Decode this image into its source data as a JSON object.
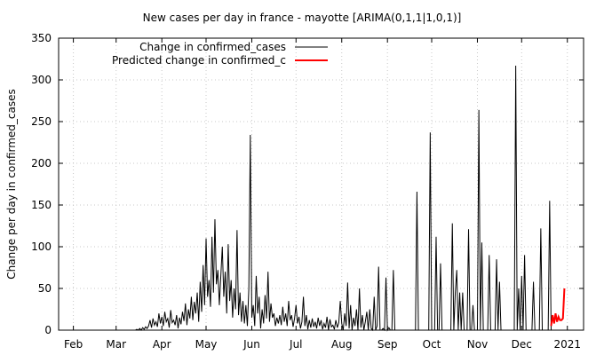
{
  "chart_data": {
    "type": "line",
    "title": "New cases per day in france - mayotte [ARIMA(0,1,1|1,0,1)]",
    "xlabel": "",
    "ylabel": "Change per day in confirmed_cases",
    "ylim": [
      0,
      350
    ],
    "yticks": [
      0,
      50,
      100,
      150,
      200,
      250,
      300,
      350
    ],
    "xlim": [
      "2020-01-22",
      "2021-01-12"
    ],
    "xticks": [
      {
        "date": "2020-02-01",
        "label": "Feb"
      },
      {
        "date": "2020-03-01",
        "label": "Mar"
      },
      {
        "date": "2020-04-01",
        "label": "Apr"
      },
      {
        "date": "2020-05-01",
        "label": "May"
      },
      {
        "date": "2020-06-01",
        "label": "Jun"
      },
      {
        "date": "2020-07-01",
        "label": "Jul"
      },
      {
        "date": "2020-08-01",
        "label": "Aug"
      },
      {
        "date": "2020-09-01",
        "label": "Sep"
      },
      {
        "date": "2020-10-01",
        "label": "Oct"
      },
      {
        "date": "2020-11-01",
        "label": "Nov"
      },
      {
        "date": "2020-12-01",
        "label": "Dec"
      },
      {
        "date": "2021-01-01",
        "label": "2021"
      }
    ],
    "grid": true,
    "legend_position": "top-left",
    "series": [
      {
        "name": "Change in confirmed_cases",
        "color": "#000000",
        "points": [
          [
            "2020-01-22",
            0
          ],
          [
            "2020-03-14",
            0
          ],
          [
            "2020-03-15",
            1
          ],
          [
            "2020-03-16",
            0
          ],
          [
            "2020-03-17",
            2
          ],
          [
            "2020-03-18",
            0
          ],
          [
            "2020-03-19",
            3
          ],
          [
            "2020-03-20",
            1
          ],
          [
            "2020-03-21",
            4
          ],
          [
            "2020-03-22",
            2
          ],
          [
            "2020-03-23",
            5
          ],
          [
            "2020-03-24",
            12
          ],
          [
            "2020-03-25",
            3
          ],
          [
            "2020-03-26",
            14
          ],
          [
            "2020-03-27",
            6
          ],
          [
            "2020-03-28",
            10
          ],
          [
            "2020-03-29",
            4
          ],
          [
            "2020-03-30",
            20
          ],
          [
            "2020-03-31",
            8
          ],
          [
            "2020-04-01",
            16
          ],
          [
            "2020-04-02",
            5
          ],
          [
            "2020-04-03",
            22
          ],
          [
            "2020-04-04",
            10
          ],
          [
            "2020-04-05",
            14
          ],
          [
            "2020-04-06",
            3
          ],
          [
            "2020-04-07",
            24
          ],
          [
            "2020-04-08",
            9
          ],
          [
            "2020-04-09",
            12
          ],
          [
            "2020-04-10",
            6
          ],
          [
            "2020-04-11",
            18
          ],
          [
            "2020-04-12",
            2
          ],
          [
            "2020-04-13",
            15
          ],
          [
            "2020-04-14",
            7
          ],
          [
            "2020-04-15",
            22
          ],
          [
            "2020-04-16",
            11
          ],
          [
            "2020-04-17",
            32
          ],
          [
            "2020-04-18",
            6
          ],
          [
            "2020-04-19",
            25
          ],
          [
            "2020-04-20",
            14
          ],
          [
            "2020-04-21",
            40
          ],
          [
            "2020-04-22",
            12
          ],
          [
            "2020-04-23",
            34
          ],
          [
            "2020-04-24",
            20
          ],
          [
            "2020-04-25",
            45
          ],
          [
            "2020-04-26",
            10
          ],
          [
            "2020-04-27",
            58
          ],
          [
            "2020-04-28",
            22
          ],
          [
            "2020-04-29",
            78
          ],
          [
            "2020-04-30",
            30
          ],
          [
            "2020-05-01",
            110
          ],
          [
            "2020-05-02",
            40
          ],
          [
            "2020-05-03",
            60
          ],
          [
            "2020-05-04",
            28
          ],
          [
            "2020-05-05",
            112
          ],
          [
            "2020-05-06",
            45
          ],
          [
            "2020-05-07",
            133
          ],
          [
            "2020-05-08",
            55
          ],
          [
            "2020-05-09",
            72
          ],
          [
            "2020-05-10",
            30
          ],
          [
            "2020-05-11",
            65
          ],
          [
            "2020-05-12",
            100
          ],
          [
            "2020-05-13",
            40
          ],
          [
            "2020-05-14",
            70
          ],
          [
            "2020-05-15",
            20
          ],
          [
            "2020-05-16",
            103
          ],
          [
            "2020-05-17",
            35
          ],
          [
            "2020-05-18",
            60
          ],
          [
            "2020-05-19",
            15
          ],
          [
            "2020-05-20",
            50
          ],
          [
            "2020-05-21",
            25
          ],
          [
            "2020-05-22",
            120
          ],
          [
            "2020-05-23",
            18
          ],
          [
            "2020-05-24",
            45
          ],
          [
            "2020-05-25",
            10
          ],
          [
            "2020-05-26",
            35
          ],
          [
            "2020-05-27",
            8
          ],
          [
            "2020-05-28",
            30
          ],
          [
            "2020-05-29",
            5
          ],
          [
            "2020-05-30",
            50
          ],
          [
            "2020-05-31",
            234
          ],
          [
            "2020-06-01",
            15
          ],
          [
            "2020-06-02",
            30
          ],
          [
            "2020-06-03",
            5
          ],
          [
            "2020-06-04",
            65
          ],
          [
            "2020-06-05",
            20
          ],
          [
            "2020-06-06",
            40
          ],
          [
            "2020-06-07",
            2
          ],
          [
            "2020-06-08",
            25
          ],
          [
            "2020-06-09",
            8
          ],
          [
            "2020-06-10",
            42
          ],
          [
            "2020-06-11",
            14
          ],
          [
            "2020-06-12",
            70
          ],
          [
            "2020-06-13",
            10
          ],
          [
            "2020-06-14",
            32
          ],
          [
            "2020-06-15",
            15
          ],
          [
            "2020-06-16",
            20
          ],
          [
            "2020-06-17",
            5
          ],
          [
            "2020-06-18",
            15
          ],
          [
            "2020-06-19",
            8
          ],
          [
            "2020-06-20",
            18
          ],
          [
            "2020-06-21",
            6
          ],
          [
            "2020-06-22",
            28
          ],
          [
            "2020-06-23",
            10
          ],
          [
            "2020-06-24",
            20
          ],
          [
            "2020-06-25",
            5
          ],
          [
            "2020-06-26",
            35
          ],
          [
            "2020-06-27",
            12
          ],
          [
            "2020-06-28",
            18
          ],
          [
            "2020-06-29",
            4
          ],
          [
            "2020-06-30",
            14
          ],
          [
            "2020-07-01",
            30
          ],
          [
            "2020-07-02",
            8
          ],
          [
            "2020-07-03",
            16
          ],
          [
            "2020-07-04",
            2
          ],
          [
            "2020-07-05",
            10
          ],
          [
            "2020-07-06",
            40
          ],
          [
            "2020-07-07",
            5
          ],
          [
            "2020-07-08",
            18
          ],
          [
            "2020-07-09",
            1
          ],
          [
            "2020-07-10",
            12
          ],
          [
            "2020-07-11",
            3
          ],
          [
            "2020-07-12",
            14
          ],
          [
            "2020-07-13",
            4
          ],
          [
            "2020-07-14",
            10
          ],
          [
            "2020-07-15",
            2
          ],
          [
            "2020-07-16",
            15
          ],
          [
            "2020-07-17",
            5
          ],
          [
            "2020-07-18",
            12
          ],
          [
            "2020-07-19",
            1
          ],
          [
            "2020-07-20",
            8
          ],
          [
            "2020-07-21",
            3
          ],
          [
            "2020-07-22",
            16
          ],
          [
            "2020-07-23",
            0
          ],
          [
            "2020-07-24",
            13
          ],
          [
            "2020-07-25",
            4
          ],
          [
            "2020-07-26",
            6
          ],
          [
            "2020-07-27",
            1
          ],
          [
            "2020-07-28",
            12
          ],
          [
            "2020-07-29",
            3
          ],
          [
            "2020-07-30",
            9
          ],
          [
            "2020-07-31",
            35
          ],
          [
            "2020-08-01",
            8
          ],
          [
            "2020-08-02",
            0
          ],
          [
            "2020-08-03",
            20
          ],
          [
            "2020-08-04",
            5
          ],
          [
            "2020-08-05",
            57
          ],
          [
            "2020-08-06",
            2
          ],
          [
            "2020-08-07",
            30
          ],
          [
            "2020-08-08",
            0
          ],
          [
            "2020-08-09",
            15
          ],
          [
            "2020-08-10",
            5
          ],
          [
            "2020-08-11",
            25
          ],
          [
            "2020-08-12",
            0
          ],
          [
            "2020-08-13",
            50
          ],
          [
            "2020-08-14",
            3
          ],
          [
            "2020-08-15",
            18
          ],
          [
            "2020-08-16",
            0
          ],
          [
            "2020-08-17",
            10
          ],
          [
            "2020-08-18",
            22
          ],
          [
            "2020-08-19",
            0
          ],
          [
            "2020-08-20",
            25
          ],
          [
            "2020-08-21",
            2
          ],
          [
            "2020-08-22",
            0
          ],
          [
            "2020-08-23",
            40
          ],
          [
            "2020-08-24",
            0
          ],
          [
            "2020-08-25",
            5
          ],
          [
            "2020-08-26",
            76
          ],
          [
            "2020-08-27",
            0
          ],
          [
            "2020-08-28",
            0
          ],
          [
            "2020-08-29",
            2
          ],
          [
            "2020-08-30",
            0
          ],
          [
            "2020-08-31",
            63
          ],
          [
            "2020-09-01",
            0
          ],
          [
            "2020-09-02",
            3
          ],
          [
            "2020-09-03",
            0
          ],
          [
            "2020-09-04",
            0
          ],
          [
            "2020-09-05",
            72
          ],
          [
            "2020-09-06",
            0
          ],
          [
            "2020-09-20",
            0
          ],
          [
            "2020-09-21",
            166
          ],
          [
            "2020-09-22",
            0
          ],
          [
            "2020-09-29",
            0
          ],
          [
            "2020-09-30",
            237
          ],
          [
            "2020-10-01",
            0
          ],
          [
            "2020-10-03",
            0
          ],
          [
            "2020-10-04",
            112
          ],
          [
            "2020-10-05",
            0
          ],
          [
            "2020-10-06",
            0
          ],
          [
            "2020-10-07",
            80
          ],
          [
            "2020-10-08",
            0
          ],
          [
            "2020-10-14",
            0
          ],
          [
            "2020-10-15",
            128
          ],
          [
            "2020-10-16",
            0
          ],
          [
            "2020-10-17",
            45
          ],
          [
            "2020-10-18",
            72
          ],
          [
            "2020-10-19",
            0
          ],
          [
            "2020-10-20",
            45
          ],
          [
            "2020-10-21",
            0
          ],
          [
            "2020-10-22",
            45
          ],
          [
            "2020-10-23",
            0
          ],
          [
            "2020-10-25",
            0
          ],
          [
            "2020-10-26",
            121
          ],
          [
            "2020-10-27",
            0
          ],
          [
            "2020-10-28",
            0
          ],
          [
            "2020-10-29",
            30
          ],
          [
            "2020-10-30",
            0
          ],
          [
            "2020-11-01",
            0
          ],
          [
            "2020-11-02",
            264
          ],
          [
            "2020-11-03",
            0
          ],
          [
            "2020-11-04",
            105
          ],
          [
            "2020-11-05",
            0
          ],
          [
            "2020-11-08",
            0
          ],
          [
            "2020-11-09",
            90
          ],
          [
            "2020-11-10",
            0
          ],
          [
            "2020-11-13",
            0
          ],
          [
            "2020-11-14",
            85
          ],
          [
            "2020-11-15",
            0
          ],
          [
            "2020-11-16",
            58
          ],
          [
            "2020-11-17",
            0
          ],
          [
            "2020-11-26",
            0
          ],
          [
            "2020-11-27",
            317
          ],
          [
            "2020-11-28",
            0
          ],
          [
            "2020-11-29",
            50
          ],
          [
            "2020-11-30",
            0
          ],
          [
            "2020-12-01",
            65
          ],
          [
            "2020-12-02",
            0
          ],
          [
            "2020-12-03",
            90
          ],
          [
            "2020-12-04",
            0
          ],
          [
            "2020-12-08",
            0
          ],
          [
            "2020-12-09",
            58
          ],
          [
            "2020-12-10",
            0
          ],
          [
            "2020-12-13",
            0
          ],
          [
            "2020-12-14",
            122
          ],
          [
            "2020-12-15",
            0
          ],
          [
            "2020-12-19",
            0
          ],
          [
            "2020-12-20",
            155
          ],
          [
            "2020-12-21",
            0
          ]
        ]
      },
      {
        "name": "Predicted change in confirmed_c",
        "color": "#ff0000",
        "points": [
          [
            "2020-12-21",
            5
          ],
          [
            "2020-12-22",
            18
          ],
          [
            "2020-12-23",
            8
          ],
          [
            "2020-12-24",
            20
          ],
          [
            "2020-12-25",
            10
          ],
          [
            "2020-12-26",
            16
          ],
          [
            "2020-12-27",
            12
          ],
          [
            "2020-12-28",
            12
          ],
          [
            "2020-12-29",
            14
          ],
          [
            "2020-12-30",
            50
          ]
        ]
      }
    ]
  }
}
